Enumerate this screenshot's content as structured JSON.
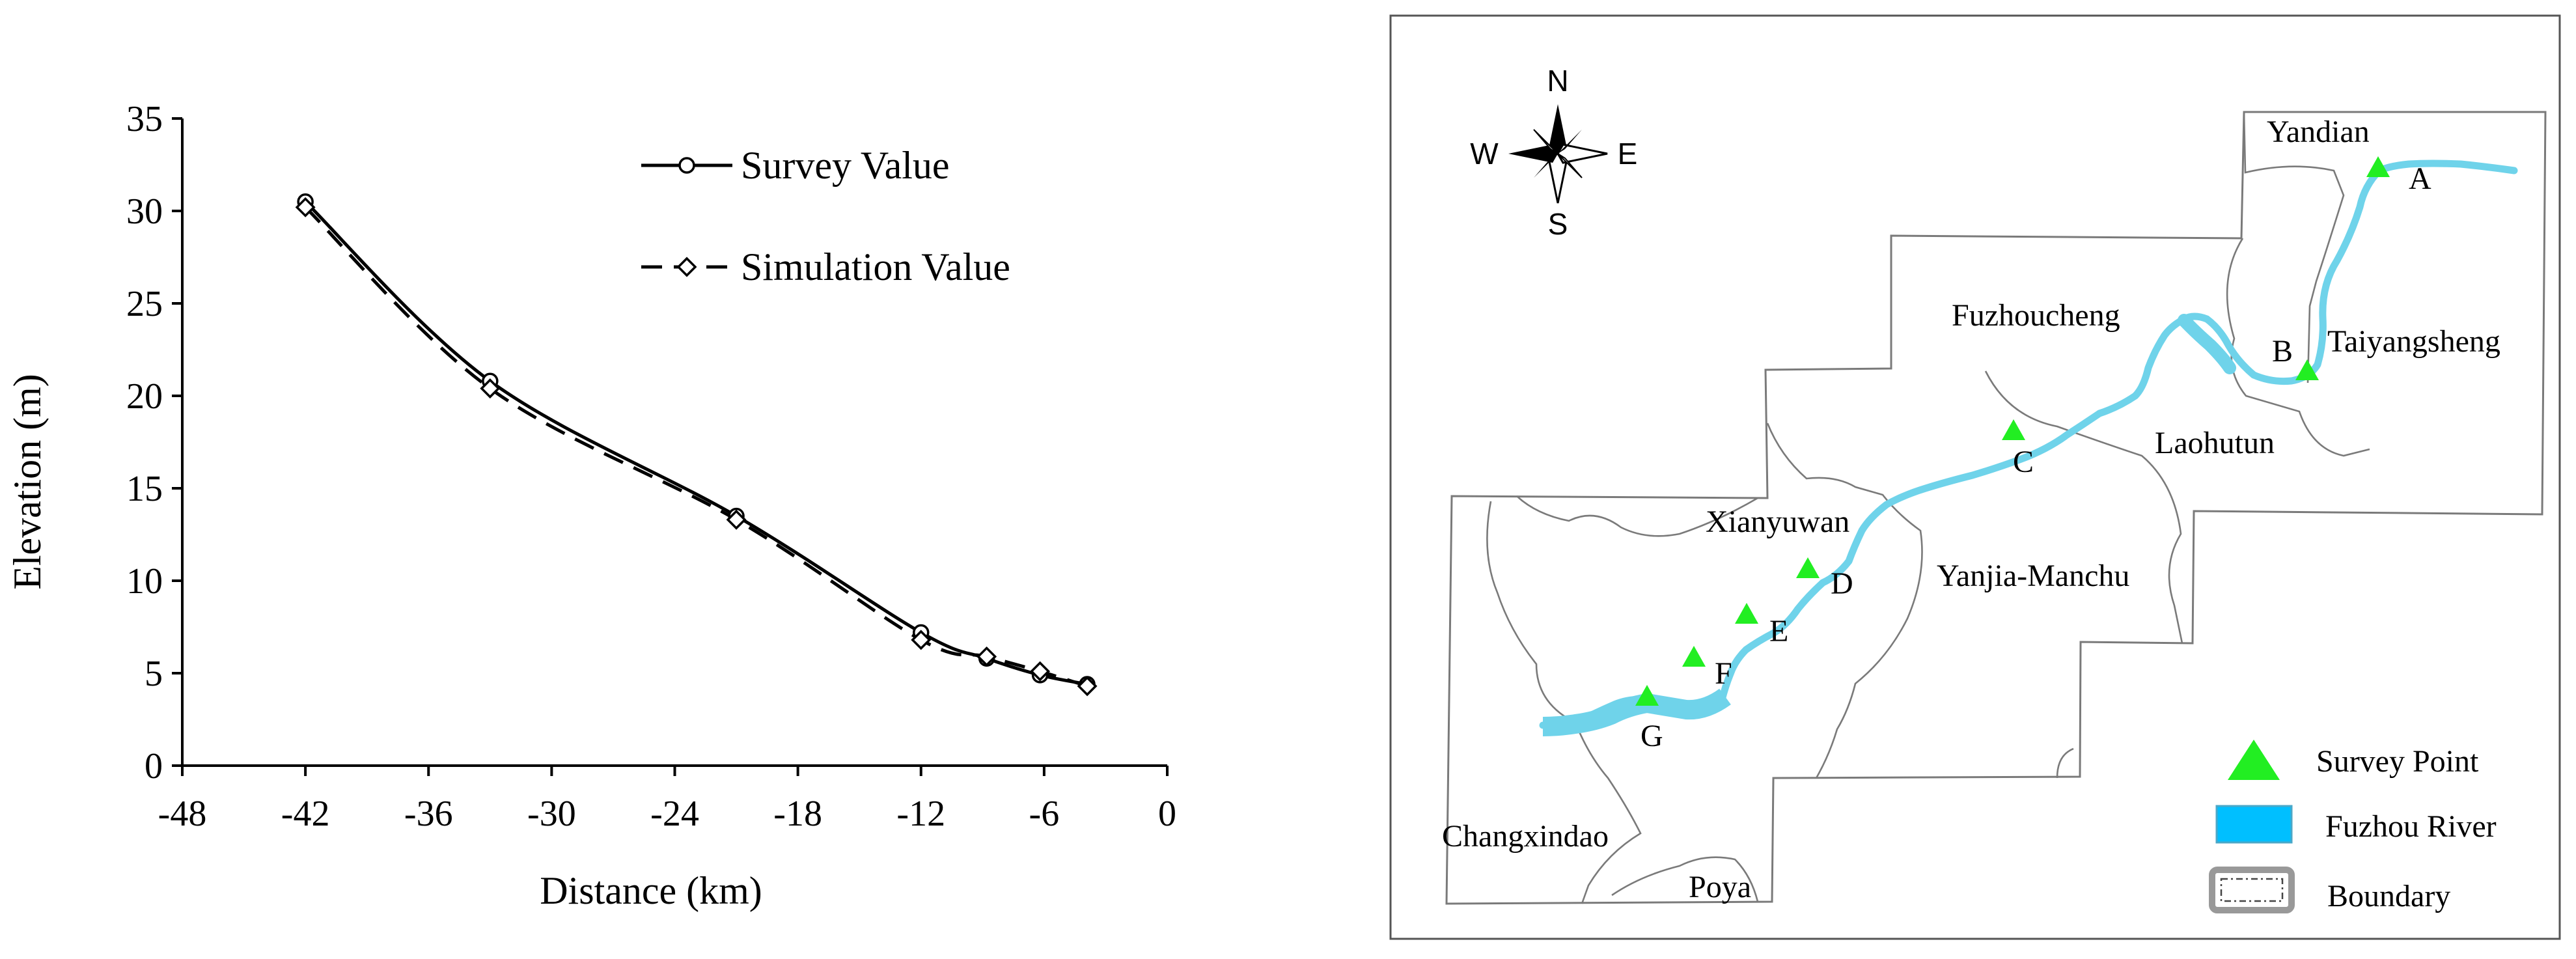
{
  "chart_data": {
    "type": "line",
    "title": "",
    "xlabel": "Distance (km)",
    "ylabel": "Elevation (m)",
    "xlim": [
      -48,
      0
    ],
    "ylim": [
      0,
      35
    ],
    "x_ticks": [
      "-48",
      "-42",
      "-36",
      "-30",
      "-24",
      "-18",
      "-12",
      "-6",
      "0"
    ],
    "y_ticks": [
      "0",
      "5",
      "10",
      "15",
      "20",
      "25",
      "30",
      "35"
    ],
    "grid": false,
    "legend_position": "top-right",
    "series": [
      {
        "name": "Survey Value",
        "marker": "circle",
        "line_style": "solid",
        "color": "#000000",
        "points": [
          {
            "x": -42.0,
            "y": 30.5
          },
          {
            "x": -33.0,
            "y": 20.8
          },
          {
            "x": -21.0,
            "y": 13.5
          },
          {
            "x": -12.0,
            "y": 7.2
          },
          {
            "x": -8.8,
            "y": 5.8
          },
          {
            "x": -6.2,
            "y": 4.9
          },
          {
            "x": -3.9,
            "y": 4.4
          }
        ]
      },
      {
        "name": "Simulation Value",
        "marker": "diamond",
        "line_style": "dashed",
        "color": "#000000",
        "points": [
          {
            "x": -42.0,
            "y": 30.2
          },
          {
            "x": -33.0,
            "y": 20.4
          },
          {
            "x": -21.0,
            "y": 13.3
          },
          {
            "x": -12.0,
            "y": 6.8
          },
          {
            "x": -8.8,
            "y": 5.9
          },
          {
            "x": -6.2,
            "y": 5.1
          },
          {
            "x": -3.9,
            "y": 4.3
          }
        ]
      }
    ]
  },
  "map": {
    "compass": {
      "north": "N",
      "south": "S",
      "east": "E",
      "west": "W"
    },
    "regions": [
      "Yandian",
      "Fuzhoucheng",
      "Taiyangsheng",
      "Laohutun",
      "Xianyuwan",
      "Yanjia-Manchu",
      "Changxindao",
      "Poya"
    ],
    "survey_points": [
      "A",
      "B",
      "C",
      "D",
      "E",
      "F",
      "G"
    ],
    "legend": {
      "survey_point": "Survey Point",
      "river": "Fuzhou River",
      "boundary": "Boundary"
    },
    "colors": {
      "survey_point": "#22ee22",
      "river": "#6fd3ea",
      "river_legend": "#00bfff",
      "boundary": "#7a7a7a"
    }
  }
}
